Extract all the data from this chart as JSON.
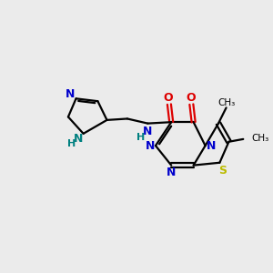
{
  "bg_color": "#ebebeb",
  "bond_color": "#000000",
  "N_color": "#0000cc",
  "O_color": "#dd0000",
  "S_color": "#bbbb00",
  "NH_color": "#008080",
  "line_width": 1.6,
  "figsize": [
    3.0,
    3.0
  ],
  "dpi": 100,
  "xlim": [
    0,
    10
  ],
  "ylim": [
    0,
    10
  ]
}
